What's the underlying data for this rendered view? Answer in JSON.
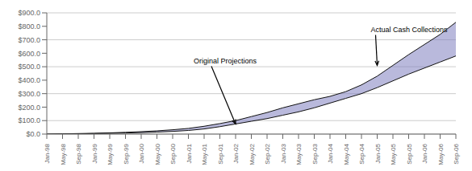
{
  "chart_data": {
    "type": "line",
    "categories": [
      "Jan-98",
      "May-98",
      "Sep-98",
      "Jan-99",
      "May-99",
      "Sep-99",
      "Jan-00",
      "May-00",
      "Sep-00",
      "Jan-01",
      "May-01",
      "Sep-01",
      "Jan-02",
      "May-02",
      "Sep-02",
      "Jan-03",
      "May-03",
      "Sep-03",
      "Jan-04",
      "May-04",
      "Sep-04",
      "Jan-05",
      "May-05",
      "Sep-05",
      "Jan-06",
      "May-06",
      "Sep-06"
    ],
    "series": [
      {
        "color": "#111111",
        "values": [
          0,
          1,
          2,
          4,
          6,
          8,
          11,
          15,
          20,
          27,
          38,
          55,
          75,
          95,
          115,
          140,
          165,
          195,
          230,
          265,
          300,
          345,
          395,
          445,
          490,
          535,
          580
        ]
      },
      {
        "color": "#111111",
        "values": [
          0,
          2,
          4,
          6,
          9,
          13,
          18,
          24,
          32,
          42,
          58,
          78,
          100,
          130,
          160,
          195,
          225,
          255,
          280,
          315,
          365,
          430,
          510,
          590,
          665,
          740,
          830
        ]
      }
    ],
    "color": "#8080c0",
    "ylim": [
      0,
      900
    ],
    "yticks": [
      {
        "value": 0,
        "label": "$0.0"
      },
      {
        "value": 100,
        "label": "$100.0"
      },
      {
        "value": 200,
        "label": "$200.0"
      },
      {
        "value": 300,
        "label": "$300.0"
      },
      {
        "value": 400,
        "label": "$400.0"
      },
      {
        "value": 500,
        "label": "$500.0"
      },
      {
        "value": 600,
        "label": "$600.0"
      },
      {
        "value": 700,
        "label": "$700.0"
      },
      {
        "value": 800,
        "label": "$800.0"
      },
      {
        "value": 900,
        "label": "$900.0"
      }
    ],
    "grid": true,
    "annotations": [
      {
        "text": "Original Projections",
        "x": "Jan-02",
        "y": 75
      },
      {
        "text": "Actual Cash Collections",
        "x": "Jan-05",
        "y": 510
      }
    ]
  }
}
